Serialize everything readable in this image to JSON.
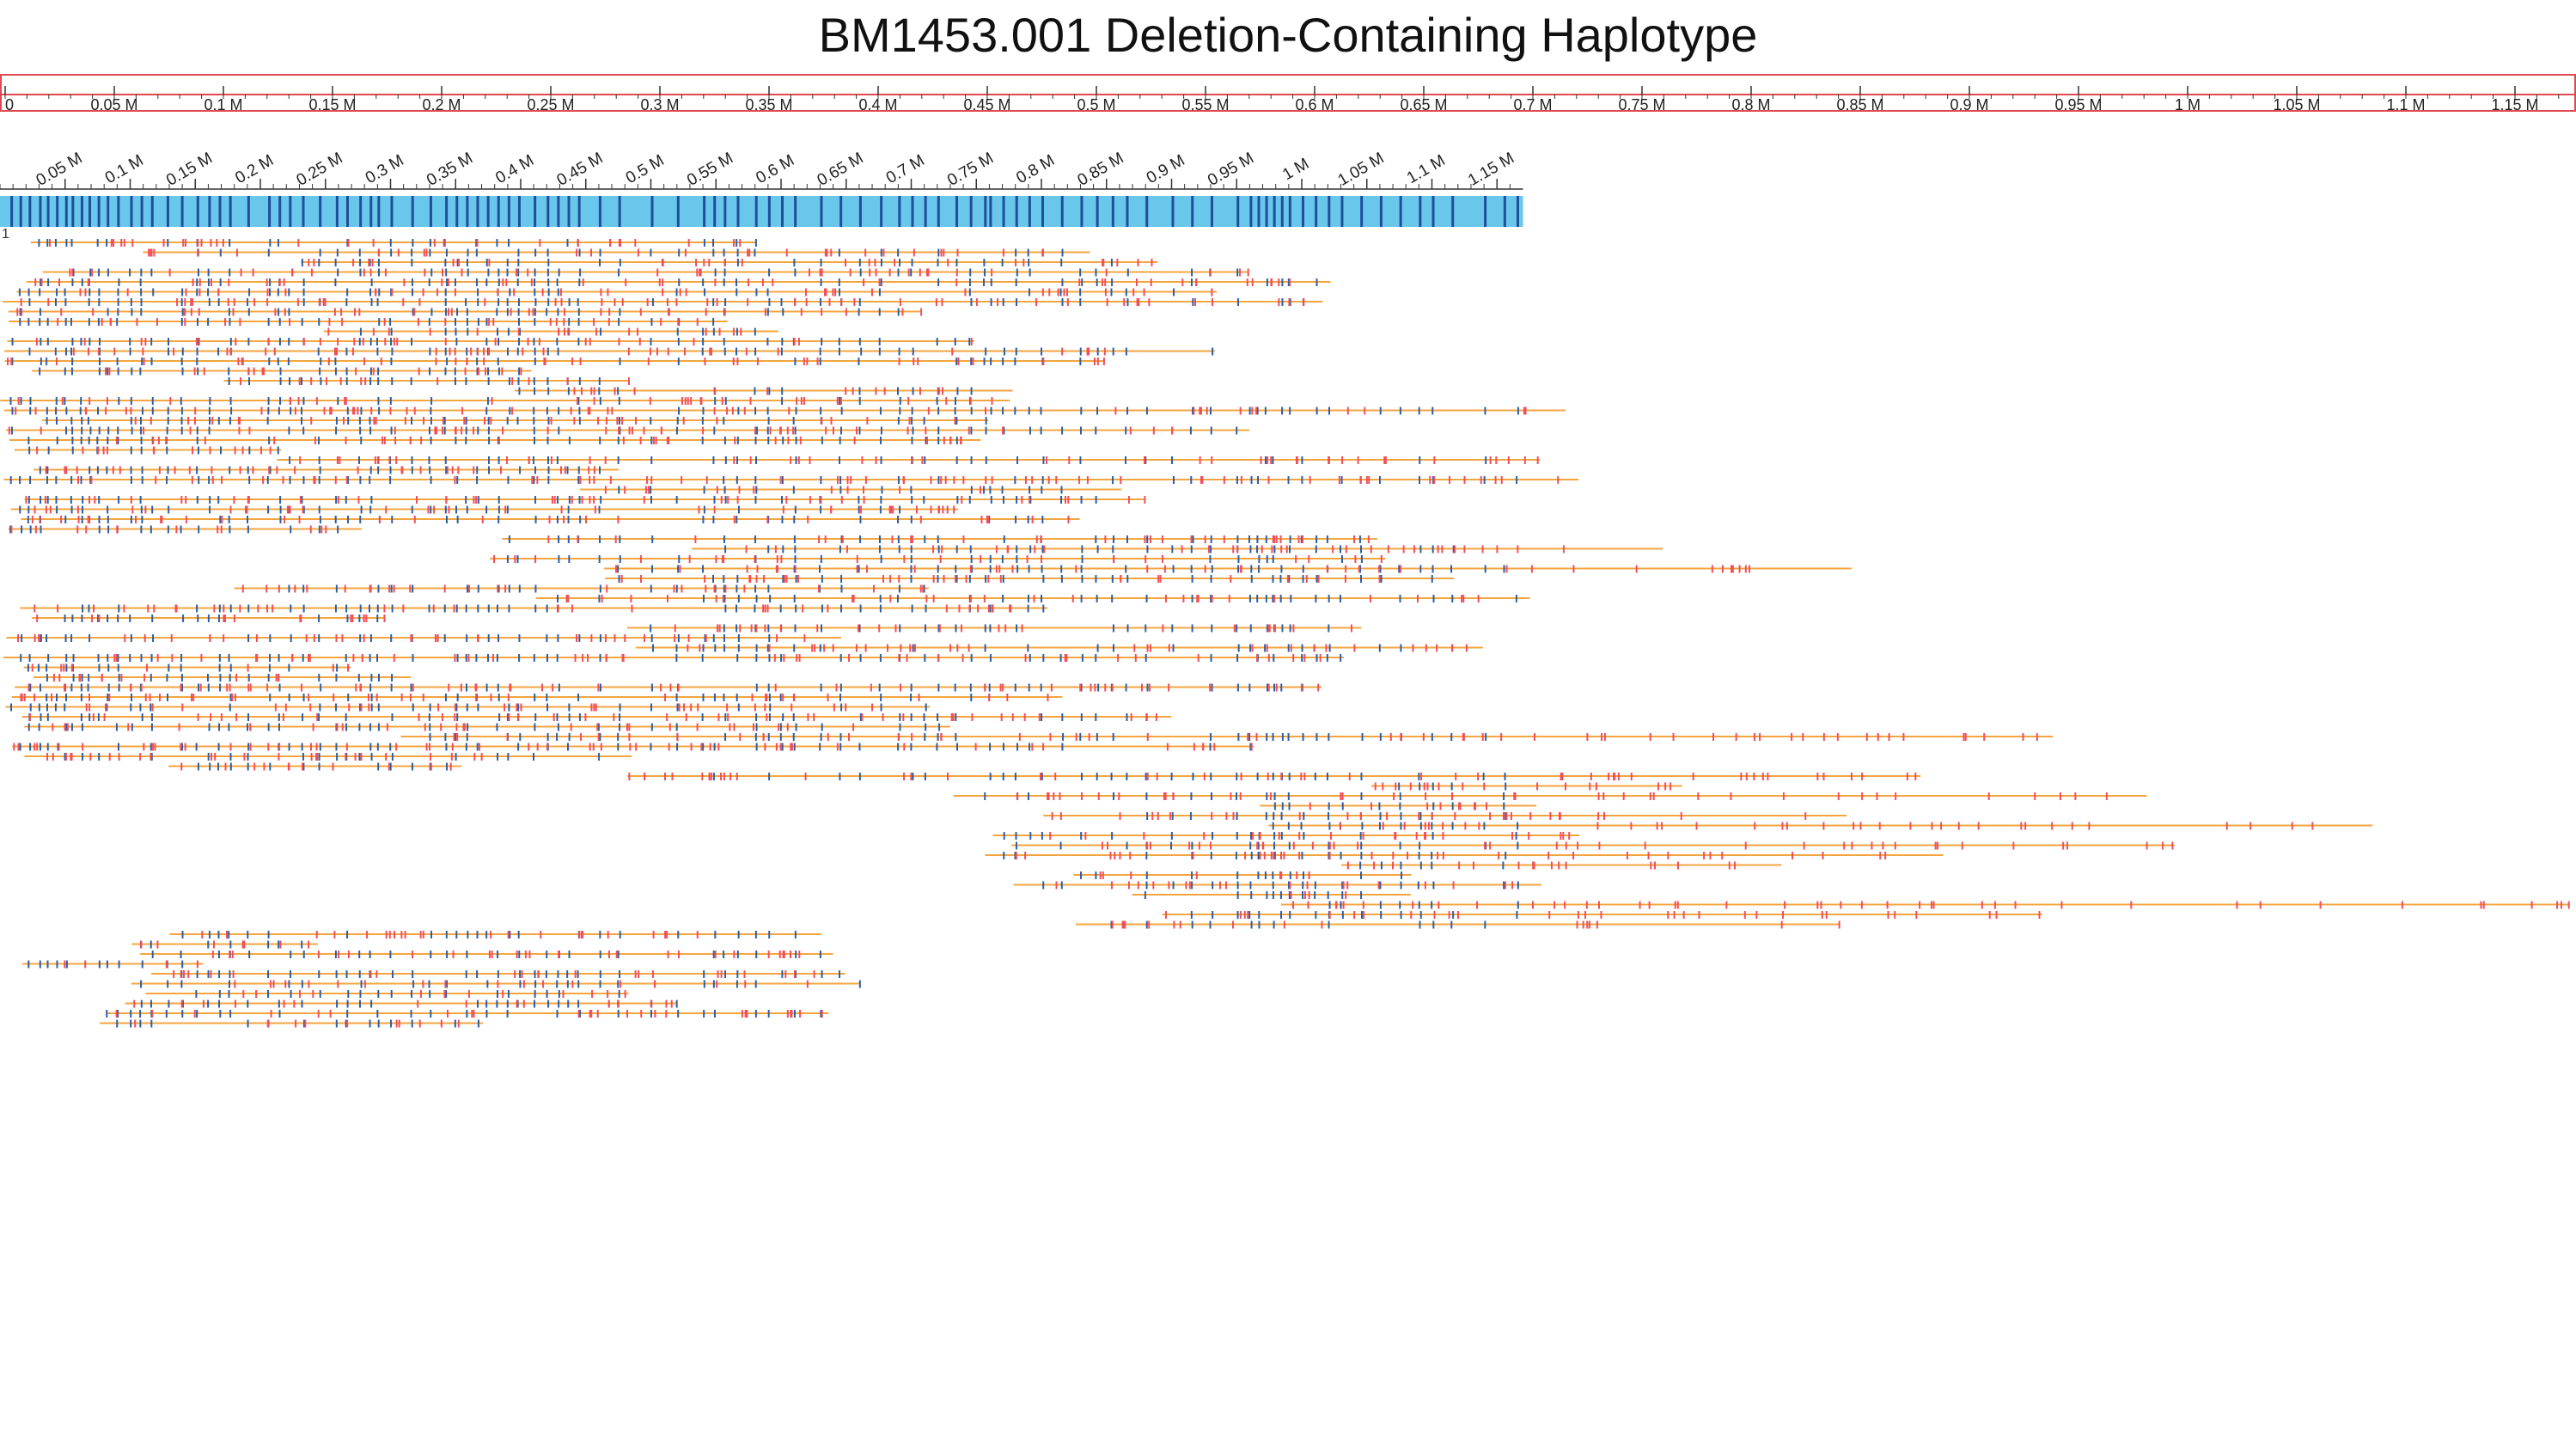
{
  "title": "BM1453.001 Deletion-Containing Haplotype",
  "reference_label": "1",
  "colors": {
    "ruler_border": "#e0484f",
    "reference_fill": "#6ac7ec",
    "reference_label": "#1f4e9a",
    "aligned_label": "#2d5fa8",
    "unaligned_label": "#f0505a",
    "molecule_line": "#f5a540"
  },
  "top_ruler": {
    "start": 0,
    "end": 1.18,
    "unit": "M",
    "major_ticks": [
      0,
      0.05,
      0.1,
      0.15,
      0.2,
      0.25,
      0.3,
      0.35,
      0.4,
      0.45,
      0.5,
      0.55,
      0.6,
      0.65,
      0.7,
      0.75,
      0.8,
      0.85,
      0.9,
      0.95,
      1,
      1.05,
      1.1,
      1.15
    ],
    "tick_labels": [
      "0",
      "0.05 M",
      "0.1 M",
      "0.15 M",
      "0.2 M",
      "0.25 M",
      "0.3 M",
      "0.35 M",
      "0.4 M",
      "0.45 M",
      "0.5 M",
      "0.55 M",
      "0.6 M",
      "0.65 M",
      "0.7 M",
      "0.75 M",
      "0.8 M",
      "0.85 M",
      "0.9 M",
      "0.95 M",
      "1 M",
      "1.05 M",
      "1.1 M",
      "1.15 M"
    ]
  },
  "reference_axis": {
    "start": 0,
    "end": 1.17,
    "unit": "M",
    "tick_labels": [
      "0.05 M",
      "0.1 M",
      "0.15 M",
      "0.2 M",
      "0.25 M",
      "0.3 M",
      "0.35 M",
      "0.4 M",
      "0.45 M",
      "0.5 M",
      "0.55 M",
      "0.6 M",
      "0.65 M",
      "0.7 M",
      "0.75 M",
      "0.8 M",
      "0.85 M",
      "0.9 M",
      "0.95 M",
      "1 M",
      "1.05 M",
      "1.1 M",
      "1.15 M"
    ],
    "tick_values": [
      0.05,
      0.1,
      0.15,
      0.2,
      0.25,
      0.3,
      0.35,
      0.4,
      0.45,
      0.5,
      0.55,
      0.6,
      0.65,
      0.7,
      0.75,
      0.8,
      0.85,
      0.9,
      0.95,
      1,
      1.05,
      1.1,
      1.15
    ]
  },
  "reference_sites": [
    0.008,
    0.015,
    0.022,
    0.03,
    0.036,
    0.043,
    0.05,
    0.055,
    0.062,
    0.068,
    0.075,
    0.082,
    0.09,
    0.1,
    0.108,
    0.116,
    0.128,
    0.139,
    0.151,
    0.16,
    0.168,
    0.176,
    0.19,
    0.206,
    0.214,
    0.222,
    0.232,
    0.245,
    0.258,
    0.266,
    0.276,
    0.284,
    0.29,
    0.3,
    0.316,
    0.33,
    0.342,
    0.35,
    0.358,
    0.366,
    0.374,
    0.382,
    0.39,
    0.398,
    0.41,
    0.42,
    0.428,
    0.436,
    0.444,
    0.46,
    0.475,
    0.5,
    0.52,
    0.54,
    0.548,
    0.556,
    0.566,
    0.58,
    0.59,
    0.6,
    0.61,
    0.63,
    0.645,
    0.66,
    0.676,
    0.69,
    0.7,
    0.71,
    0.72,
    0.734,
    0.745,
    0.756,
    0.76,
    0.77,
    0.78,
    0.79,
    0.8,
    0.815,
    0.83,
    0.842,
    0.854,
    0.865,
    0.88,
    0.9,
    0.915,
    0.93,
    0.95,
    0.96,
    0.966,
    0.972,
    0.978,
    0.984,
    0.99,
    1.0,
    1.01,
    1.02,
    1.03,
    1.045,
    1.06,
    1.075,
    1.09,
    1.1,
    1.115,
    1.14,
    1.155,
    1.165
  ]
}
